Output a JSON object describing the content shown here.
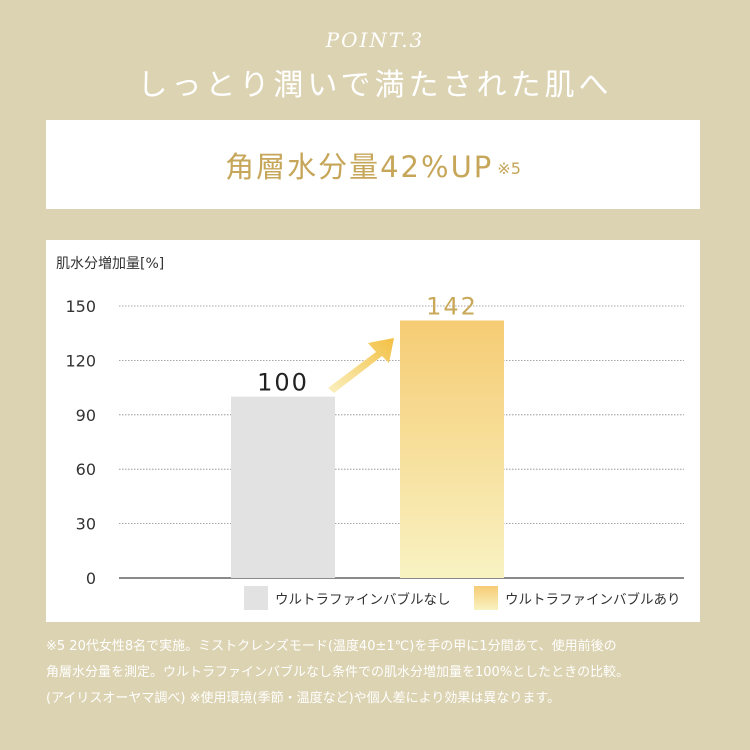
{
  "header": {
    "point": "POINT.3",
    "title": "しっとり潤いで満たされた肌へ"
  },
  "banner": {
    "main": "角層水分量42%UP",
    "note": "※5"
  },
  "colors": {
    "background": "#dcd3b2",
    "gold": "#c6a659",
    "bar_gray": "#e2e2e2",
    "bar_gold_top": "#f6cc74",
    "bar_gold_bottom": "#f8f2c2",
    "arrow": "#f4c44a"
  },
  "chart_data": {
    "type": "bar",
    "ylabel": "肌水分増加量[%]",
    "ylim": [
      0,
      150
    ],
    "yticks": [
      0,
      30,
      60,
      90,
      120,
      150
    ],
    "grid": true,
    "legend_position": "bottom-right",
    "series": [
      {
        "name": "ウルトラファインバブルなし",
        "value": 100,
        "label": "100"
      },
      {
        "name": "ウルトラファインバブルあり",
        "value": 142,
        "label": "142"
      }
    ],
    "annotation": "arrow-up-right"
  },
  "footnote": {
    "lines": [
      "※5  20代女性8名で実施。ミストクレンズモード(温度40±1℃)を手の甲に1分間あて、使用前後の",
      "角層水分量を測定。ウルトラファインバブルなし条件での肌水分増加量を100%としたときの比較。",
      "(アイリスオーヤマ調べ) ※使用環境(季節・温度など)や個人差により効果は異なります。"
    ]
  }
}
